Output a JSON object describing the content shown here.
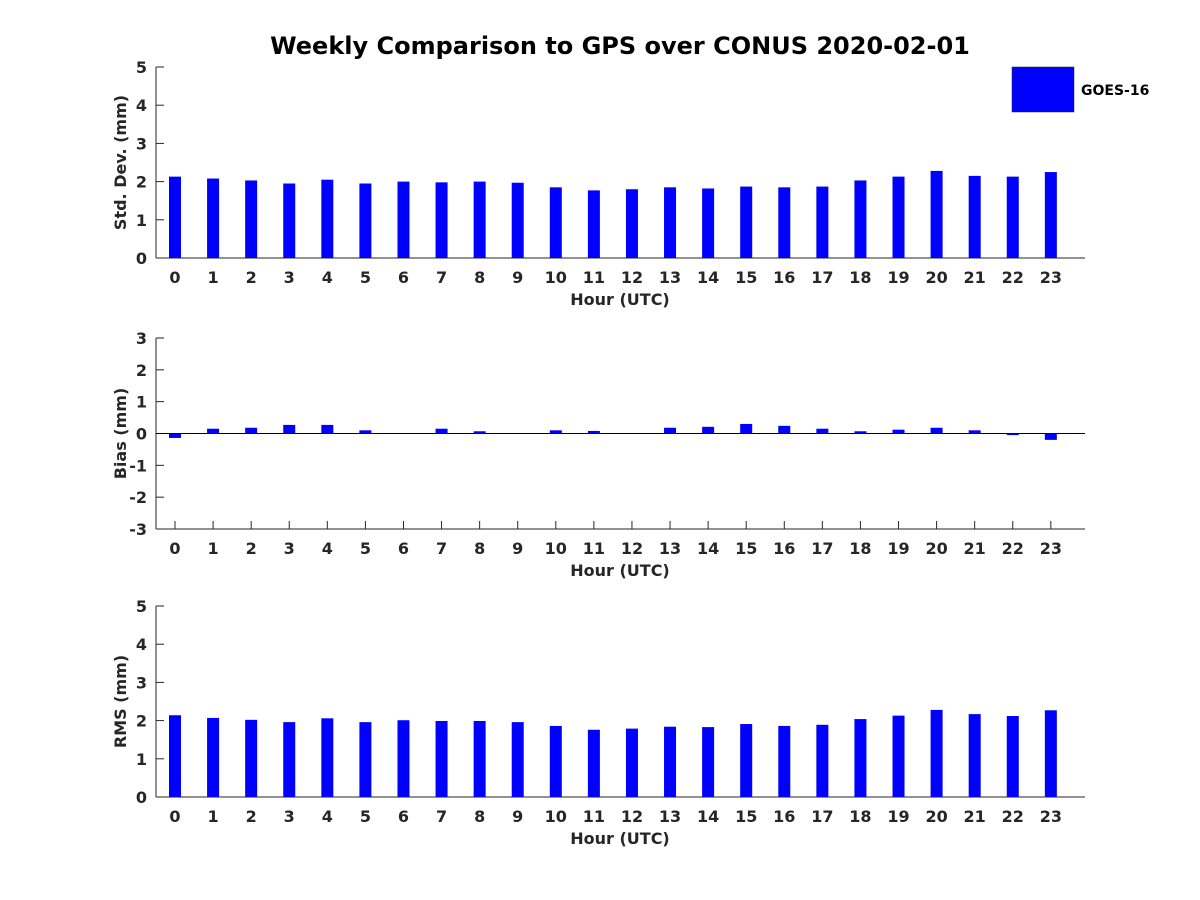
{
  "figure_title": "Weekly Comparison to GPS over CONUS 2020-02-01",
  "legend": {
    "label": "GOES-16",
    "color": "#0000ff"
  },
  "chart_data": [
    {
      "type": "bar",
      "ylabel": "Std. Dev. (mm)",
      "xlabel": "Hour (UTC)",
      "ylim": [
        0,
        5
      ],
      "yticks": [
        0,
        1,
        2,
        3,
        4,
        5
      ],
      "categories": [
        0,
        1,
        2,
        3,
        4,
        5,
        6,
        7,
        8,
        9,
        10,
        11,
        12,
        13,
        14,
        15,
        16,
        17,
        18,
        19,
        20,
        21,
        22,
        23
      ],
      "series": [
        {
          "name": "GOES-16",
          "color": "#0000ff",
          "values": [
            2.13,
            2.08,
            2.03,
            1.95,
            2.05,
            1.95,
            2.0,
            1.98,
            2.0,
            1.97,
            1.85,
            1.77,
            1.8,
            1.85,
            1.82,
            1.87,
            1.85,
            1.87,
            2.03,
            2.13,
            2.28,
            2.15,
            2.13,
            2.25
          ]
        }
      ]
    },
    {
      "type": "bar",
      "ylabel": "Bias (mm)",
      "xlabel": "Hour (UTC)",
      "ylim": [
        -3,
        3
      ],
      "yticks": [
        -3,
        -2,
        -1,
        0,
        1,
        2,
        3
      ],
      "zero_line": true,
      "categories": [
        0,
        1,
        2,
        3,
        4,
        5,
        6,
        7,
        8,
        9,
        10,
        11,
        12,
        13,
        14,
        15,
        16,
        17,
        18,
        19,
        20,
        21,
        22,
        23
      ],
      "series": [
        {
          "name": "GOES-16",
          "color": "#0000ff",
          "values": [
            -0.14,
            0.15,
            0.18,
            0.27,
            0.27,
            0.1,
            0.0,
            0.15,
            0.07,
            0.0,
            0.1,
            0.08,
            0.0,
            0.18,
            0.21,
            0.3,
            0.24,
            0.15,
            0.07,
            0.12,
            0.18,
            0.1,
            -0.05,
            -0.2
          ]
        }
      ]
    },
    {
      "type": "bar",
      "ylabel": "RMS (mm)",
      "xlabel": "Hour (UTC)",
      "ylim": [
        0,
        5
      ],
      "yticks": [
        0,
        1,
        2,
        3,
        4,
        5
      ],
      "categories": [
        0,
        1,
        2,
        3,
        4,
        5,
        6,
        7,
        8,
        9,
        10,
        11,
        12,
        13,
        14,
        15,
        16,
        17,
        18,
        19,
        20,
        21,
        22,
        23
      ],
      "series": [
        {
          "name": "GOES-16",
          "color": "#0000ff",
          "values": [
            2.14,
            2.07,
            2.02,
            1.96,
            2.06,
            1.96,
            2.01,
            1.99,
            1.99,
            1.96,
            1.86,
            1.76,
            1.79,
            1.84,
            1.83,
            1.91,
            1.86,
            1.89,
            2.04,
            2.13,
            2.28,
            2.17,
            2.12,
            2.27
          ]
        }
      ]
    }
  ]
}
